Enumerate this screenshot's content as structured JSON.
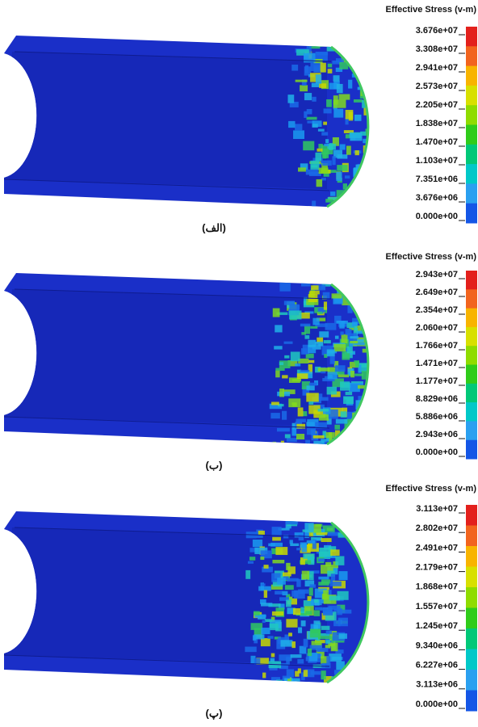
{
  "panels": [
    {
      "legend_title": "Effective Stress (v-m)",
      "ticks": [
        "3.676e+07",
        "3.308e+07",
        "2.941e+07",
        "2.573e+07",
        "2.205e+07",
        "1.838e+07",
        "1.470e+07",
        "1.103e+07",
        "7.351e+06",
        "3.676e+06",
        "0.000e+00"
      ],
      "caption": "(الف)"
    },
    {
      "legend_title": "Effective Stress (v-m)",
      "ticks": [
        "2.943e+07",
        "2.649e+07",
        "2.354e+07",
        "2.060e+07",
        "1.766e+07",
        "1.471e+07",
        "1.177e+07",
        "8.829e+06",
        "5.886e+06",
        "2.943e+06",
        "0.000e+00"
      ],
      "caption": "(ب)"
    },
    {
      "legend_title": "Effective Stress (v-m)",
      "ticks": [
        "3.113e+07",
        "2.802e+07",
        "2.491e+07",
        "2.179e+07",
        "1.868e+07",
        "1.557e+07",
        "1.245e+07",
        "9.340e+06",
        "6.227e+06",
        "3.113e+06",
        "0.000e+00"
      ],
      "caption": "(پ)"
    }
  ]
}
